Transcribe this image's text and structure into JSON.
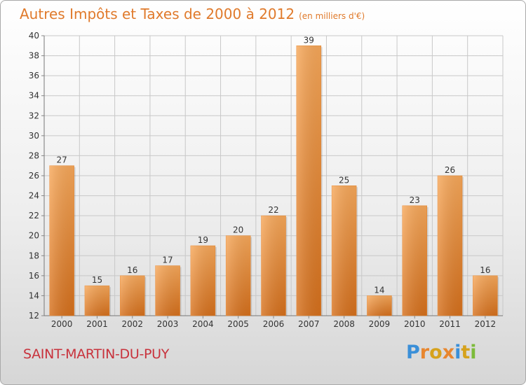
{
  "chart": {
    "title": "Autres Impôts et Taxes de 2000 à 2012",
    "unit_note": "(en milliers d'€)",
    "commune": "SAINT-MARTIN-DU-PUY",
    "logo_text": "Proxiti"
  },
  "colors": {
    "bar": "#f0923a",
    "title": "#e07a2b",
    "commune": "#c8323c"
  },
  "chart_data": {
    "type": "bar",
    "categories": [
      "2000",
      "2001",
      "2002",
      "2003",
      "2004",
      "2005",
      "2006",
      "2007",
      "2008",
      "2009",
      "2010",
      "2011",
      "2012"
    ],
    "values": [
      27,
      15,
      16,
      17,
      19,
      20,
      22,
      39,
      25,
      14,
      23,
      26,
      16
    ],
    "ylim": [
      12,
      40
    ],
    "yticks": [
      12,
      14,
      16,
      18,
      20,
      22,
      24,
      26,
      28,
      30,
      32,
      34,
      36,
      38,
      40
    ],
    "grid": true,
    "data_labels": true
  }
}
